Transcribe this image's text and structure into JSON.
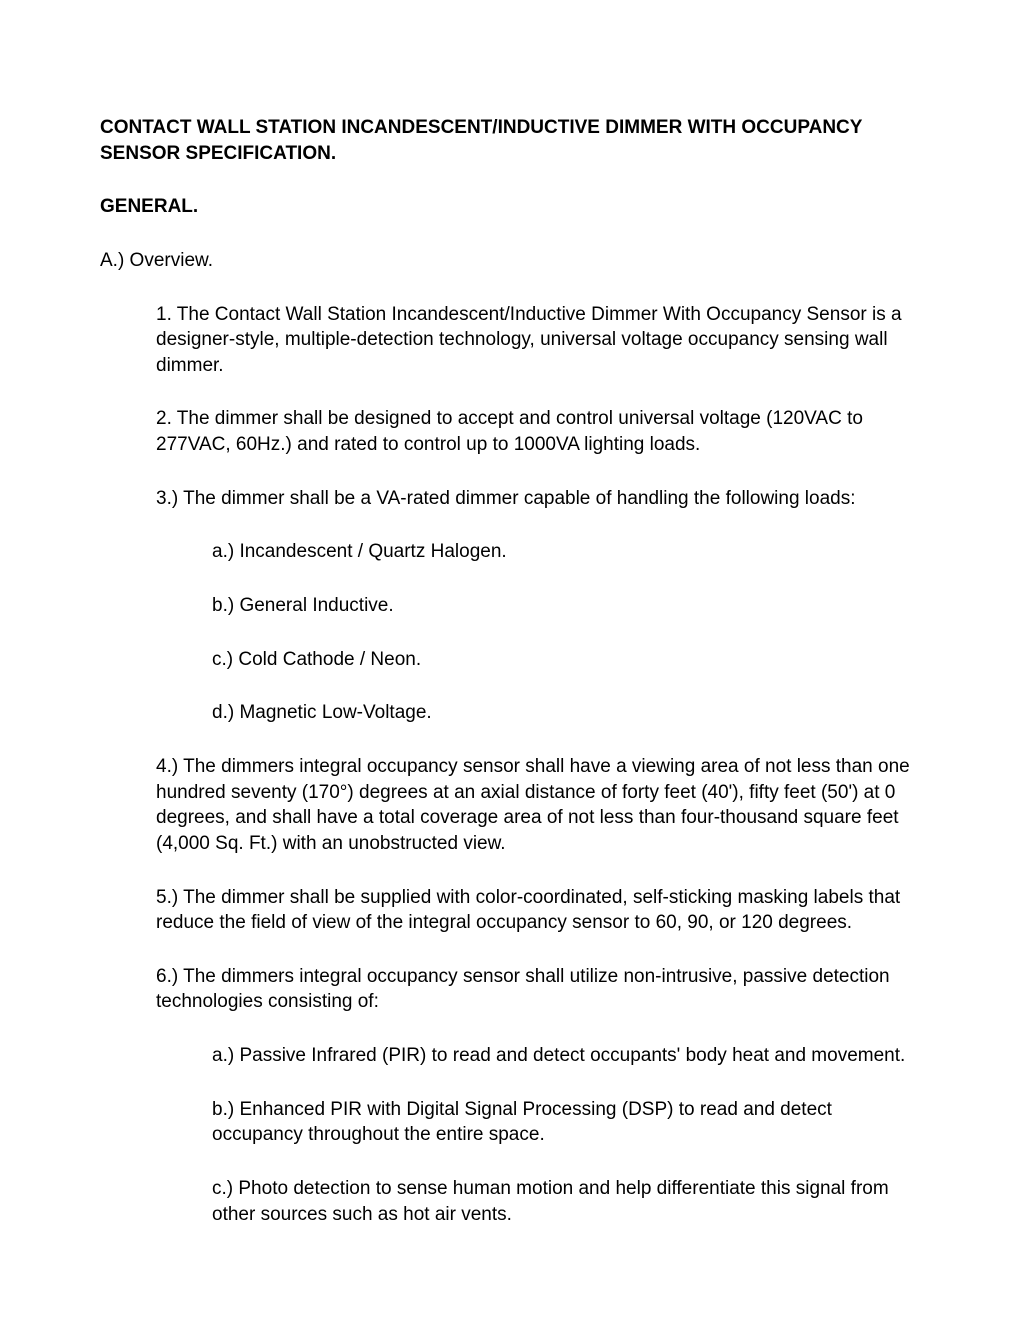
{
  "title": "CONTACT WALL STATION INCANDESCENT/INDUCTIVE DIMMER WITH OCCUPANCY SENSOR SPECIFICATION.",
  "sectionHeading": "GENERAL.",
  "overviewLabel": "A.) Overview.",
  "items": {
    "p1": "1. The Contact Wall Station Incandescent/Inductive Dimmer With Occupancy Sensor is a designer-style, multiple-detection technology, universal voltage occupancy sensing wall dimmer.",
    "p2": "2. The dimmer shall be designed to accept and control universal voltage (120VAC to 277VAC, 60Hz.) and rated to control up to 1000VA lighting loads.",
    "p3": "3.) The dimmer shall be a VA-rated dimmer capable of handling the following loads:",
    "p3a": "a.) Incandescent / Quartz Halogen.",
    "p3b": "b.) General Inductive.",
    "p3c": "c.) Cold Cathode / Neon.",
    "p3d": "d.) Magnetic Low-Voltage.",
    "p4": "4.) The dimmers integral occupancy sensor shall have a viewing area of not less than one hundred seventy (170°) degrees at an axial distance of forty feet (40'), fifty feet (50') at 0 degrees, and shall have a total coverage area of not less than four-thousand square feet (4,000 Sq. Ft.) with an unobstructed view.",
    "p5": "5.) The dimmer shall be supplied with color-coordinated, self-sticking masking labels that reduce the field of view of the integral occupancy sensor to 60, 90, or 120 degrees.",
    "p6": "6.) The dimmers integral occupancy sensor shall utilize non-intrusive, passive detection technologies consisting of:",
    "p6a": "a.) Passive Infrared (PIR) to read and detect occupants' body heat and movement.",
    "p6b": "b.) Enhanced PIR with Digital Signal Processing (DSP) to read and detect occupancy throughout the entire space.",
    "p6c": "c.) Photo detection to sense human motion and help differentiate this signal from other sources such as hot air vents."
  }
}
